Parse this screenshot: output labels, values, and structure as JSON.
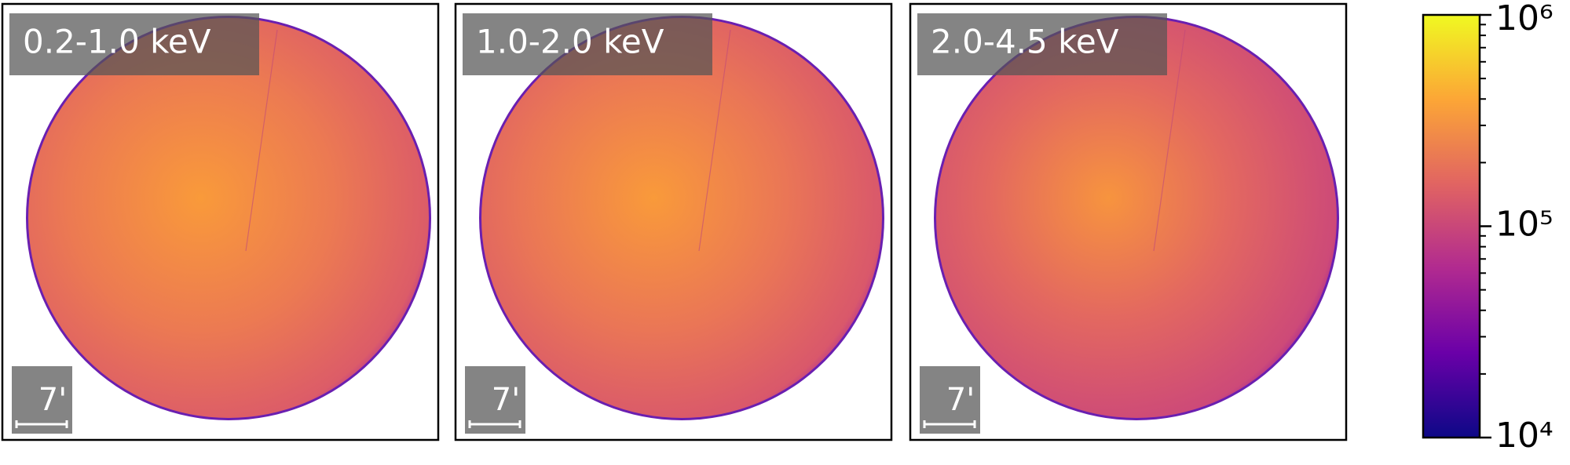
{
  "chart_data": [
    {
      "type": "image",
      "label": "0.2-1.0 keV",
      "scale_bar": "7'"
    },
    {
      "type": "image",
      "label": "1.0-2.0 keV",
      "scale_bar": "7'"
    },
    {
      "type": "image",
      "label": "2.0-4.5 keV",
      "scale_bar": "7'"
    },
    {
      "type": "colorbar",
      "scale": "log",
      "colormap": "plasma",
      "ylim": [
        10000,
        1000000
      ],
      "yticks": [
        {
          "value": 10000,
          "label": "10⁴"
        },
        {
          "value": 100000,
          "label": "10⁵"
        },
        {
          "value": 1000000,
          "label": "10⁶"
        }
      ],
      "minor_ticks": [
        20000,
        30000,
        40000,
        50000,
        60000,
        70000,
        80000,
        90000,
        200000,
        300000,
        400000,
        500000,
        600000,
        700000,
        800000,
        900000
      ]
    }
  ]
}
